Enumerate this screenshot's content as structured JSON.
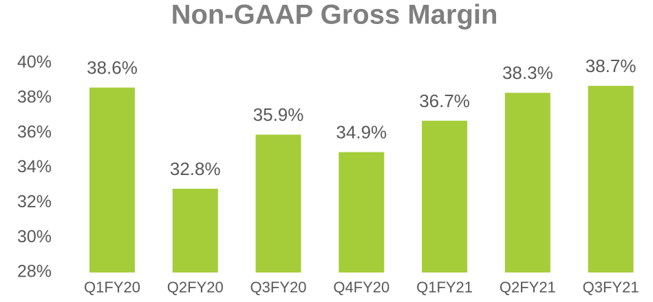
{
  "chart_data": {
    "type": "bar",
    "title": "Non-GAAP Gross Margin",
    "categories": [
      "Q1FY20",
      "Q2FY20",
      "Q3FY20",
      "Q4FY20",
      "Q1FY21",
      "Q2FY21",
      "Q3FY21"
    ],
    "values": [
      38.6,
      32.8,
      35.9,
      34.9,
      36.7,
      38.3,
      38.7
    ],
    "value_labels": [
      "38.6%",
      "32.8%",
      "35.9%",
      "34.9%",
      "36.7%",
      "38.3%",
      "38.7%"
    ],
    "color": "#a5cd39",
    "ylim": [
      28,
      40
    ],
    "yticks": [
      {
        "value": 28,
        "label": "28%"
      },
      {
        "value": 30,
        "label": "30%"
      },
      {
        "value": 32,
        "label": "32%"
      },
      {
        "value": 34,
        "label": "34%"
      },
      {
        "value": 36,
        "label": "36%"
      },
      {
        "value": 38,
        "label": "38%"
      },
      {
        "value": 40,
        "label": "40%"
      }
    ],
    "grid": false
  }
}
